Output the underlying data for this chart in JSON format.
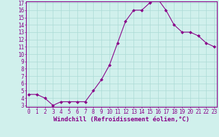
{
  "x": [
    0,
    1,
    2,
    3,
    4,
    5,
    6,
    7,
    8,
    9,
    10,
    11,
    12,
    13,
    14,
    15,
    16,
    17,
    18,
    19,
    20,
    21,
    22,
    23
  ],
  "y": [
    4.5,
    4.5,
    4.0,
    3.0,
    3.5,
    3.5,
    3.5,
    3.5,
    5.0,
    6.5,
    8.5,
    11.5,
    14.5,
    16.0,
    16.0,
    17.0,
    17.5,
    16.0,
    14.0,
    13.0,
    13.0,
    12.5,
    11.5,
    11.0
  ],
  "line_color": "#880088",
  "marker": "D",
  "marker_size": 2.0,
  "bg_color": "#d0f0ec",
  "grid_color": "#aadad4",
  "axis_color": "#880088",
  "spine_color": "#880088",
  "xlabel": "Windchill (Refroidissement éolien,°C)",
  "ylim_min": 3,
  "ylim_max": 17,
  "xlim_min": 0,
  "xlim_max": 23,
  "yticks": [
    3,
    4,
    5,
    6,
    7,
    8,
    9,
    10,
    11,
    12,
    13,
    14,
    15,
    16,
    17
  ],
  "xticks": [
    0,
    1,
    2,
    3,
    4,
    5,
    6,
    7,
    8,
    9,
    10,
    11,
    12,
    13,
    14,
    15,
    16,
    17,
    18,
    19,
    20,
    21,
    22,
    23
  ],
  "tick_fontsize": 5.5,
  "xlabel_fontsize": 6.5,
  "linewidth": 0.8
}
